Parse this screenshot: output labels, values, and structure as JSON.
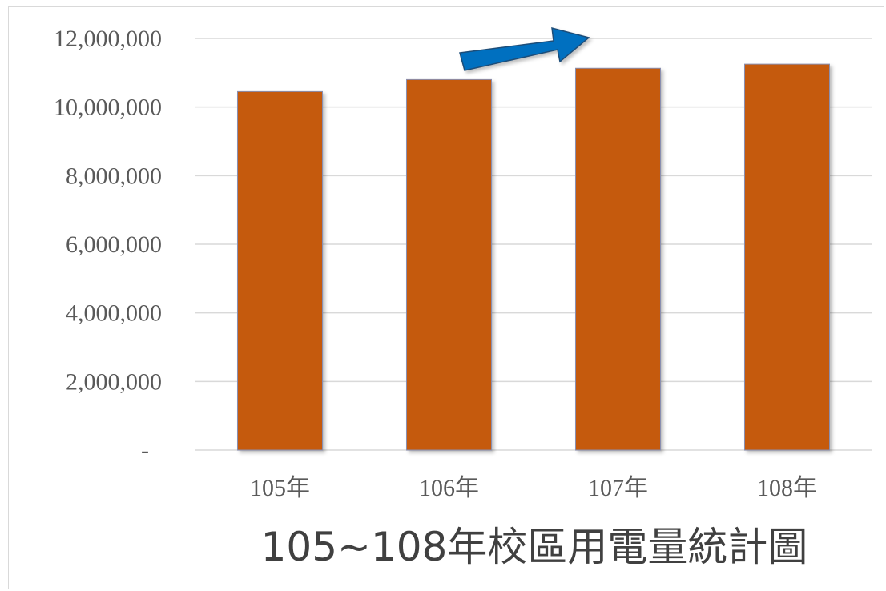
{
  "chart_data": {
    "type": "bar",
    "title": "105~108年校區用電量統計圖",
    "xlabel": "",
    "ylabel": "",
    "categories": [
      "105年",
      "106年",
      "107年",
      "108年"
    ],
    "values": [
      10450000,
      10800000,
      11130000,
      11250000
    ],
    "ylim": [
      0,
      12000000
    ],
    "yticks": [
      {
        "value": 0,
        "label": "-"
      },
      {
        "value": 2000000,
        "label": "2,000,000"
      },
      {
        "value": 4000000,
        "label": "4,000,000"
      },
      {
        "value": 6000000,
        "label": "6,000,000"
      },
      {
        "value": 8000000,
        "label": "8,000,000"
      },
      {
        "value": 10000000,
        "label": "10,000,000"
      },
      {
        "value": 12000000,
        "label": "12,000,000"
      }
    ],
    "grid": true,
    "legend": "none",
    "bar_color": "#c55a11",
    "arrow_color": "#0070c0",
    "annotation": "arrow-up-right"
  }
}
